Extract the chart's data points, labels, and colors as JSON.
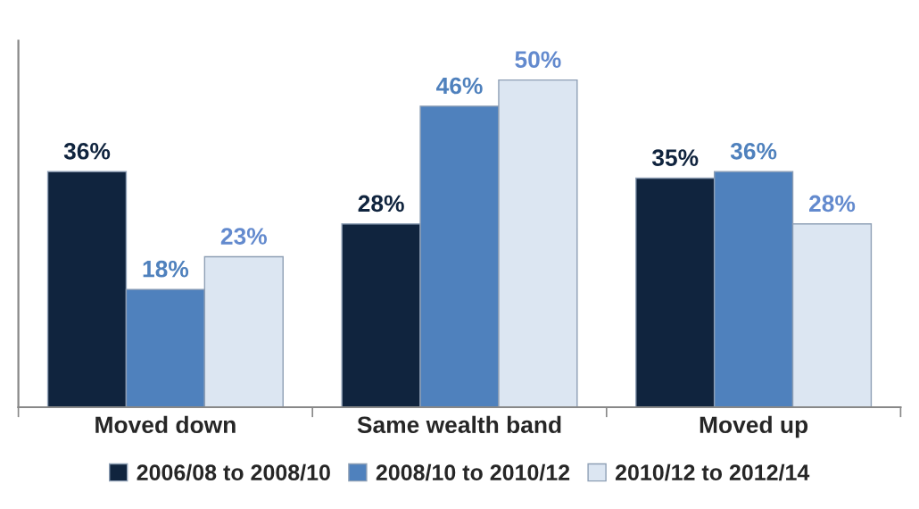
{
  "chart_data": {
    "type": "bar",
    "categories": [
      "Moved down",
      "Same wealth band",
      "Moved up"
    ],
    "series": [
      {
        "name": "2006/08 to 2008/10",
        "color": "#10243e",
        "values": [
          36,
          28,
          35
        ],
        "value_labels": [
          "36%",
          "28%",
          "35%"
        ]
      },
      {
        "name": "2008/10 to 2010/12",
        "color": "#4f81bd",
        "values": [
          18,
          46,
          36
        ],
        "value_labels": [
          "18%",
          "46%",
          "36%"
        ]
      },
      {
        "name": "2010/12 to 2012/14",
        "color": "#dce6f2",
        "values": [
          23,
          50,
          28
        ],
        "value_labels": [
          "23%",
          "50%",
          "28%"
        ]
      }
    ],
    "legend": "bottom",
    "grid": false
  }
}
